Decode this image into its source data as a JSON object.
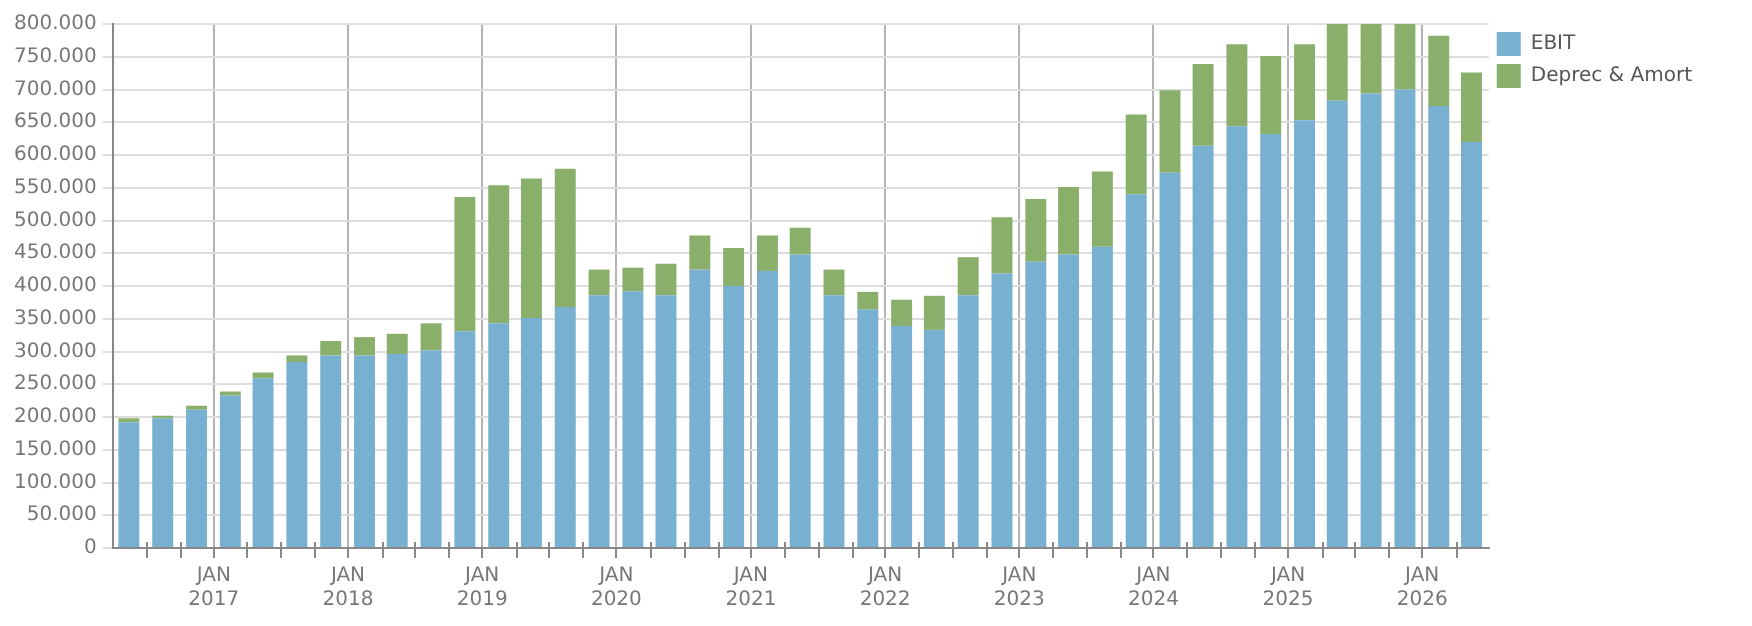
{
  "chart_data": {
    "type": "bar",
    "stacked": true,
    "x": [
      "2016-05-15",
      "2016-08-15",
      "2016-11-15",
      "2017-02-15",
      "2017-05-15",
      "2017-08-15",
      "2017-11-15",
      "2018-02-15",
      "2018-05-15",
      "2018-08-15",
      "2018-11-15",
      "2019-02-15",
      "2019-05-15",
      "2019-08-15",
      "2019-11-15",
      "2020-02-15",
      "2020-05-15",
      "2020-08-15",
      "2020-11-15",
      "2021-02-15",
      "2021-05-15",
      "2021-08-15",
      "2021-11-15",
      "2022-02-15",
      "2022-05-15",
      "2022-08-15",
      "2022-11-15",
      "2023-02-15",
      "2023-05-15",
      "2023-08-15",
      "2023-11-15",
      "2024-02-15",
      "2024-05-15",
      "2024-08-15",
      "2024-11-15",
      "2025-02-15",
      "2025-05-15",
      "2025-08-15",
      "2025-11-15",
      "2026-02-15",
      "2026-05-15"
    ],
    "series": [
      {
        "name": "EBIT",
        "color": "#78b0d2",
        "values": [
          192000,
          198000,
          211000,
          233000,
          259000,
          284000,
          294000,
          294000,
          296000,
          302000,
          331000,
          343000,
          351000,
          368000,
          386000,
          392000,
          386000,
          425000,
          400000,
          423000,
          448000,
          386000,
          364000,
          339000,
          333000,
          386000,
          419000,
          437000,
          448000,
          460000,
          540000,
          573000,
          614000,
          644000,
          632000,
          653000,
          683000,
          694000,
          700000,
          675000,
          620000
        ]
      },
      {
        "name": "Deprec & Amort",
        "color": "#8aaf6a",
        "values": [
          6000,
          4000,
          6000,
          6000,
          9000,
          10000,
          22000,
          28000,
          31000,
          41000,
          205000,
          211000,
          213000,
          211000,
          39000,
          36000,
          48000,
          52000,
          58000,
          54000,
          41000,
          39000,
          27000,
          40000,
          52000,
          58000,
          86000,
          96000,
          103000,
          115000,
          122000,
          126000,
          125000,
          125000,
          119000,
          116000,
          117000,
          106000,
          100000,
          107000,
          106000
        ]
      }
    ],
    "xlim": [
      "2016-04-01",
      "2026-07-01"
    ],
    "xticks": [
      {
        "value": "2016-07-01",
        "label": null
      },
      {
        "value": "2016-10-01",
        "label": null
      },
      {
        "value": "2017-01-01",
        "label": "JAN 2017"
      },
      {
        "value": "2017-04-01",
        "label": null
      },
      {
        "value": "2017-07-01",
        "label": null
      },
      {
        "value": "2017-10-01",
        "label": null
      },
      {
        "value": "2018-01-01",
        "label": "JAN 2018"
      },
      {
        "value": "2018-04-01",
        "label": null
      },
      {
        "value": "2018-07-01",
        "label": null
      },
      {
        "value": "2018-10-01",
        "label": null
      },
      {
        "value": "2019-01-01",
        "label": "JAN 2019"
      },
      {
        "value": "2019-04-01",
        "label": null
      },
      {
        "value": "2019-07-01",
        "label": null
      },
      {
        "value": "2019-10-01",
        "label": null
      },
      {
        "value": "2020-01-01",
        "label": "JAN 2020"
      },
      {
        "value": "2020-04-01",
        "label": null
      },
      {
        "value": "2020-07-01",
        "label": null
      },
      {
        "value": "2020-10-01",
        "label": null
      },
      {
        "value": "2021-01-01",
        "label": "JAN 2021"
      },
      {
        "value": "2021-04-01",
        "label": null
      },
      {
        "value": "2021-07-01",
        "label": null
      },
      {
        "value": "2021-10-01",
        "label": null
      },
      {
        "value": "2022-01-01",
        "label": "JAN 2022"
      },
      {
        "value": "2022-04-01",
        "label": null
      },
      {
        "value": "2022-07-01",
        "label": null
      },
      {
        "value": "2022-10-01",
        "label": null
      },
      {
        "value": "2023-01-01",
        "label": "JAN 2023"
      },
      {
        "value": "2023-04-01",
        "label": null
      },
      {
        "value": "2023-07-01",
        "label": null
      },
      {
        "value": "2023-10-01",
        "label": null
      },
      {
        "value": "2024-01-01",
        "label": "JAN 2024"
      },
      {
        "value": "2024-04-01",
        "label": null
      },
      {
        "value": "2024-07-01",
        "label": null
      },
      {
        "value": "2024-10-01",
        "label": null
      },
      {
        "value": "2025-01-01",
        "label": "JAN 2025"
      },
      {
        "value": "2025-04-01",
        "label": null
      },
      {
        "value": "2025-07-01",
        "label": null
      },
      {
        "value": "2025-10-01",
        "label": null
      },
      {
        "value": "2026-01-01",
        "label": "JAN 2026"
      },
      {
        "value": "2026-04-01",
        "label": null
      }
    ],
    "ylim": [
      0,
      800000
    ],
    "yticks": [
      {
        "value": 0,
        "label": "0"
      },
      {
        "value": 50000,
        "label": "50.000"
      },
      {
        "value": 100000,
        "label": "100.000"
      },
      {
        "value": 150000,
        "label": "150.000"
      },
      {
        "value": 200000,
        "label": "200.000"
      },
      {
        "value": 250000,
        "label": "250.000"
      },
      {
        "value": 300000,
        "label": "300.000"
      },
      {
        "value": 350000,
        "label": "350.000"
      },
      {
        "value": 400000,
        "label": "400.000"
      },
      {
        "value": 450000,
        "label": "450.000"
      },
      {
        "value": 500000,
        "label": "500.000"
      },
      {
        "value": 550000,
        "label": "550.000"
      },
      {
        "value": 600000,
        "label": "600.000"
      },
      {
        "value": 650000,
        "label": "650.000"
      },
      {
        "value": 700000,
        "label": "700.000"
      },
      {
        "value": 750000,
        "label": "750.000"
      },
      {
        "value": 800000,
        "label": "800.000"
      }
    ],
    "grid": true,
    "legend": "top right"
  }
}
